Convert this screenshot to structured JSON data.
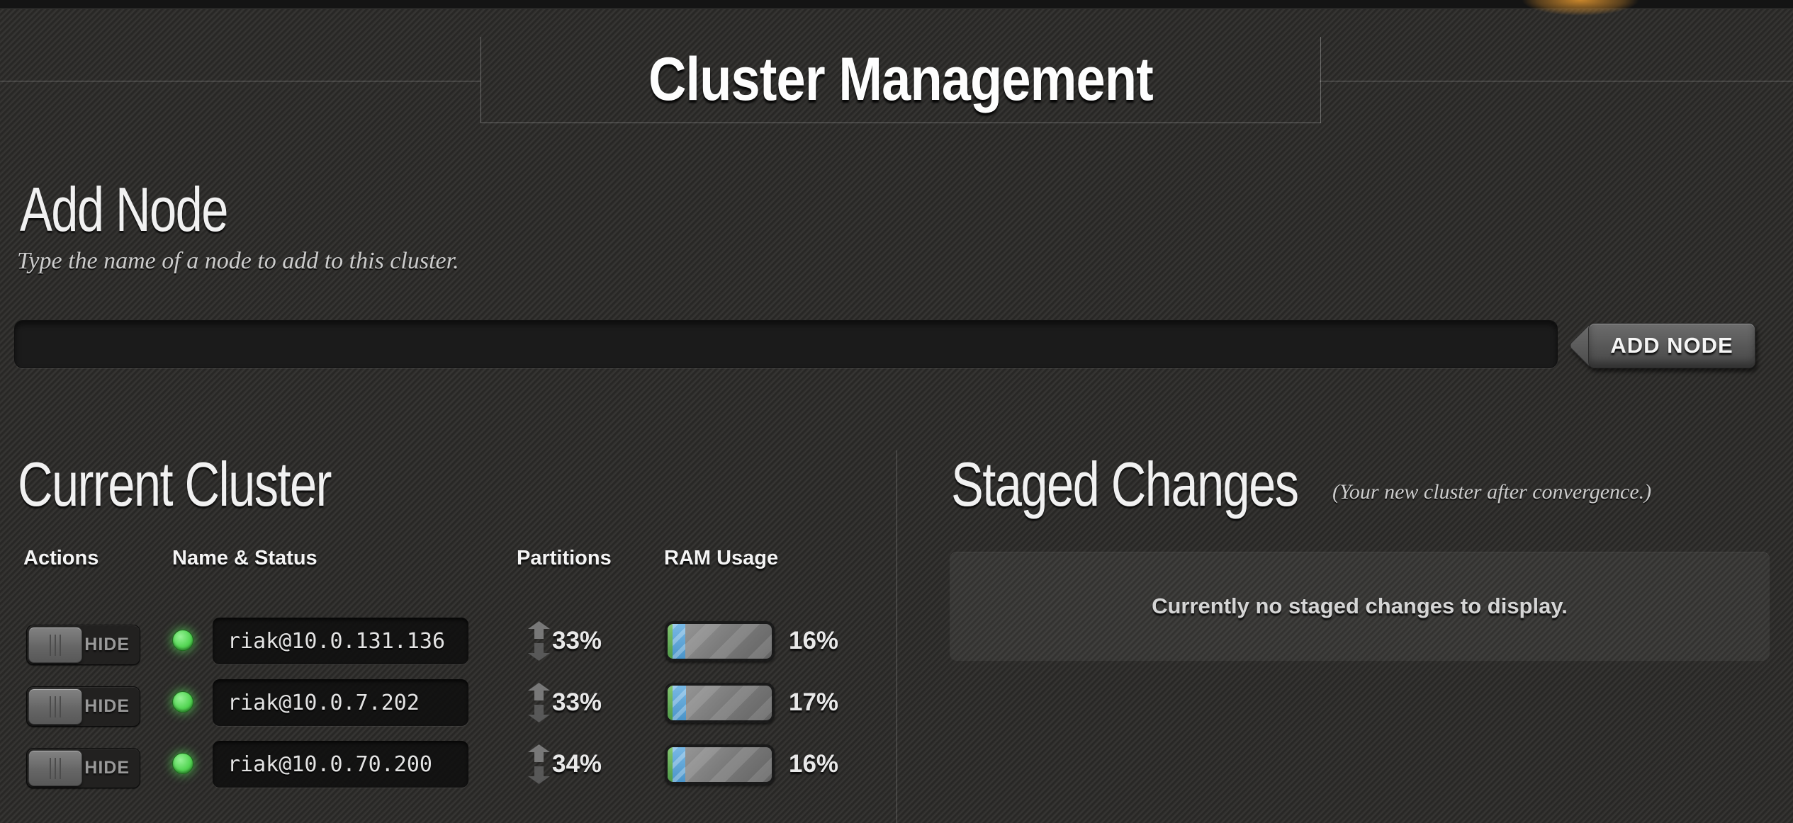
{
  "page": {
    "top_title": "Cluster Management"
  },
  "add_node": {
    "heading": "Add Node",
    "description": "Type the name of a node to add to this cluster.",
    "input_value": "",
    "button_label": "ADD NODE"
  },
  "current_cluster": {
    "heading": "Current Cluster",
    "columns": [
      "Actions",
      "Name & Status",
      "Partitions",
      "RAM Usage"
    ],
    "nodes": [
      {
        "action_label": "HIDE",
        "status": "ok",
        "name": "riak@10.0.131.136",
        "partitions_pct": "33%",
        "ram_pct": "16%",
        "ram_fill": 16
      },
      {
        "action_label": "HIDE",
        "status": "ok",
        "name": "riak@10.0.7.202",
        "partitions_pct": "33%",
        "ram_pct": "17%",
        "ram_fill": 17
      },
      {
        "action_label": "HIDE",
        "status": "ok",
        "name": "riak@10.0.70.200",
        "partitions_pct": "34%",
        "ram_pct": "16%",
        "ram_fill": 16
      }
    ]
  },
  "staged_changes": {
    "heading": "Staged Changes",
    "note": "(Your new cluster after convergence.)",
    "empty_message": "Currently no staged changes to display."
  },
  "colors": {
    "background": "#2e2d2b",
    "top_strip": "#141414",
    "accent_glow_orange": "#d28c2d",
    "status_green": "#55d655",
    "ram_bar_green": "#5fae52",
    "ram_bar_blue": "#5ba5d6",
    "ram_bar_gray": "#7a7a7a"
  }
}
